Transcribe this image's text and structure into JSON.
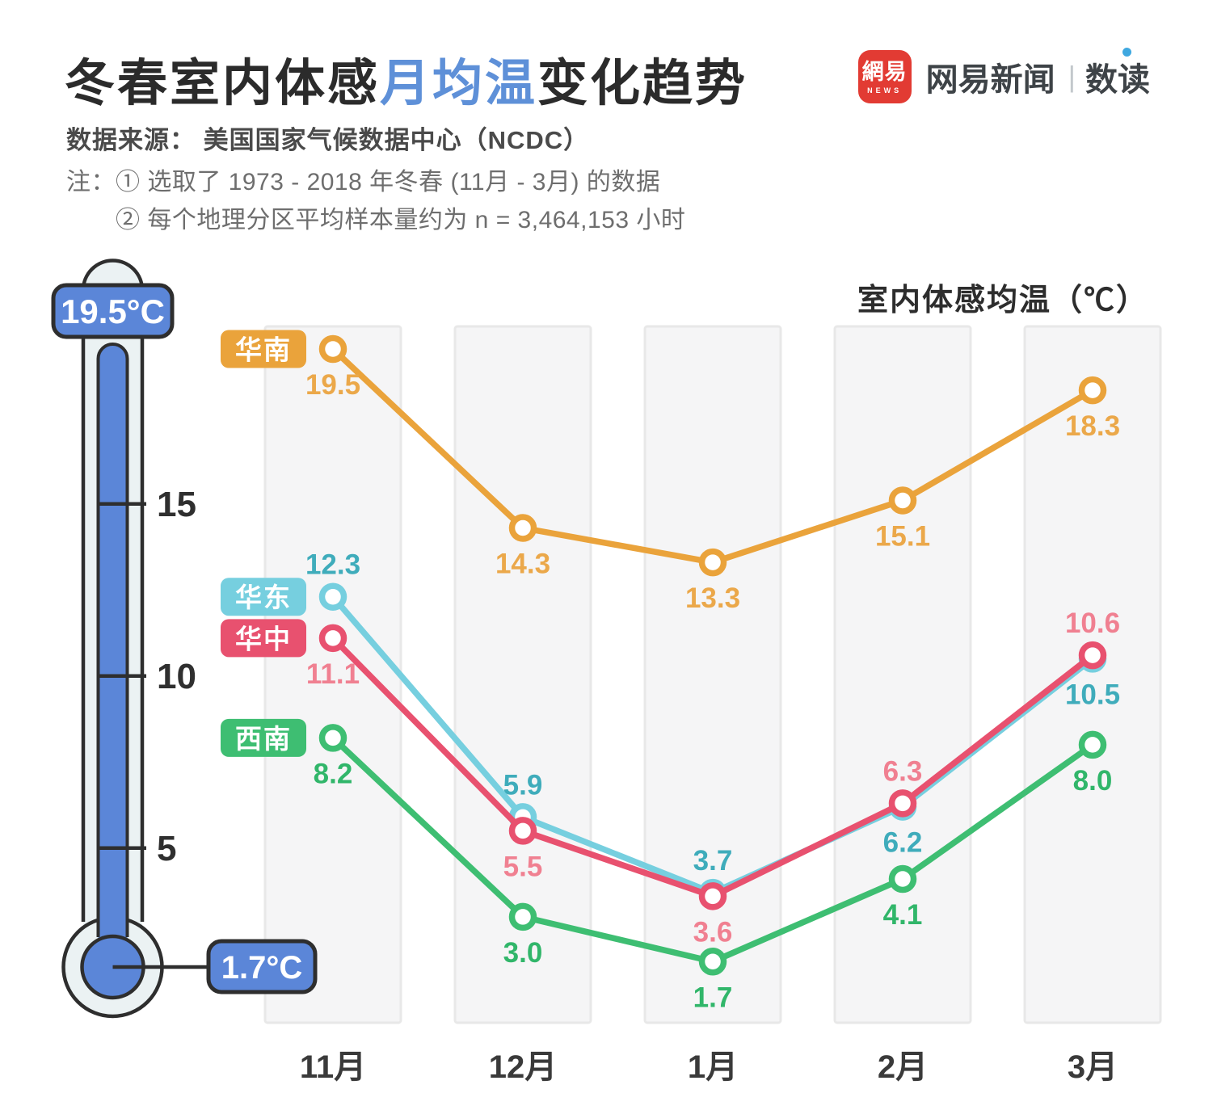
{
  "header": {
    "title_parts": {
      "pre": "冬春室内体感",
      "highlight": "月均温",
      "post": "变化趋势"
    },
    "highlight_color": "#5E90D8",
    "source": "数据来源： 美国国家气候数据中心（NCDC）",
    "note_prefix": "注：",
    "notes": [
      "① 选取了 1973 - 2018 年冬春 (11月 - 3月) 的数据",
      "② 每个地理分区平均样本量约为 n = 3,464,153 小时"
    ]
  },
  "logo": {
    "badge_text": "網易",
    "badge_sub": "NEWS",
    "badge_color": "#E23B33",
    "brand": "网易新闻",
    "separator": "|",
    "product": "数读",
    "dot_color": "#3FA8E0"
  },
  "axis_title": "室内体感均温（℃）",
  "thermometer": {
    "max_label": "19.5°C",
    "min_label": "1.7°C",
    "ticks": [
      "15",
      "10",
      "5"
    ],
    "mercury_color": "#5B86D8",
    "body_color": "#EBF2F3",
    "outline_color": "#2E2E2E"
  },
  "chart_data": {
    "type": "line",
    "title": "室内体感均温（℃）",
    "categories": [
      "11月",
      "12月",
      "1月",
      "2月",
      "3月"
    ],
    "series": [
      {
        "id": "huadong",
        "name": "华东",
        "color": "#76CFDF",
        "label_color": "#3FACBB",
        "values": [
          12.3,
          5.9,
          3.7,
          6.2,
          10.5
        ],
        "label_pos": [
          "above",
          "above",
          "above",
          "below",
          "below"
        ]
      },
      {
        "id": "huazhong",
        "name": "华中",
        "color": "#E8516F",
        "label_color": "#F08091",
        "values": [
          11.1,
          5.5,
          3.6,
          6.3,
          10.6
        ],
        "label_pos": [
          "below",
          "below",
          "below",
          "above",
          "above"
        ]
      },
      {
        "id": "xinan",
        "name": "西南",
        "color": "#3EBE72",
        "label_color": "#31B66A",
        "values": [
          8.2,
          3.0,
          1.7,
          4.1,
          8.0
        ],
        "label_pos": [
          "below",
          "below",
          "below",
          "below",
          "below"
        ]
      },
      {
        "id": "huanan",
        "name": "华南",
        "color": "#EAA33B",
        "label_color": "#EBA84A",
        "values": [
          19.5,
          14.3,
          13.3,
          15.1,
          18.3
        ],
        "label_pos": [
          "below",
          "below",
          "below",
          "below",
          "below"
        ]
      }
    ],
    "ylim": [
      0,
      20
    ],
    "y_ticks": [
      5,
      10,
      15
    ],
    "grid": "column-bands",
    "band_fill": "#F5F5F6",
    "band_stroke": "#E8E8E8",
    "legend_position": "left-of-first-points"
  }
}
